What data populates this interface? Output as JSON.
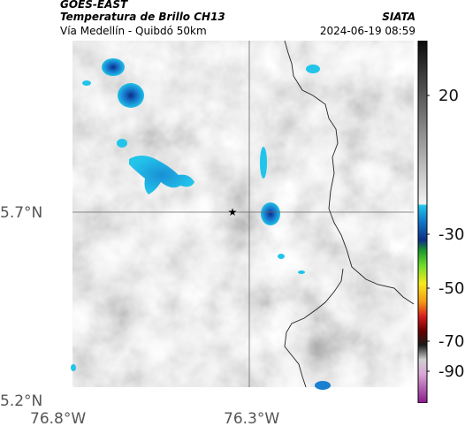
{
  "header": {
    "satellite": "GOES-EAST",
    "product": "Temperatura de Brillo CH13",
    "region": "Vía Medellín - Quibdó 50km",
    "source": "SIATA",
    "datetime": "2024-06-19 08:59"
  },
  "axes": {
    "lat_labels": [
      "5.7°N",
      "5.2°N"
    ],
    "lon_labels": [
      "76.8°W",
      "76.3°W"
    ]
  },
  "colorbar": {
    "ticks": [
      "20",
      "-30",
      "-50",
      "-70",
      "-90"
    ]
  },
  "colors": {
    "cloud_cyan": "#19b8e6",
    "cloud_blue": "#0b3f9c",
    "border": "#222222"
  }
}
